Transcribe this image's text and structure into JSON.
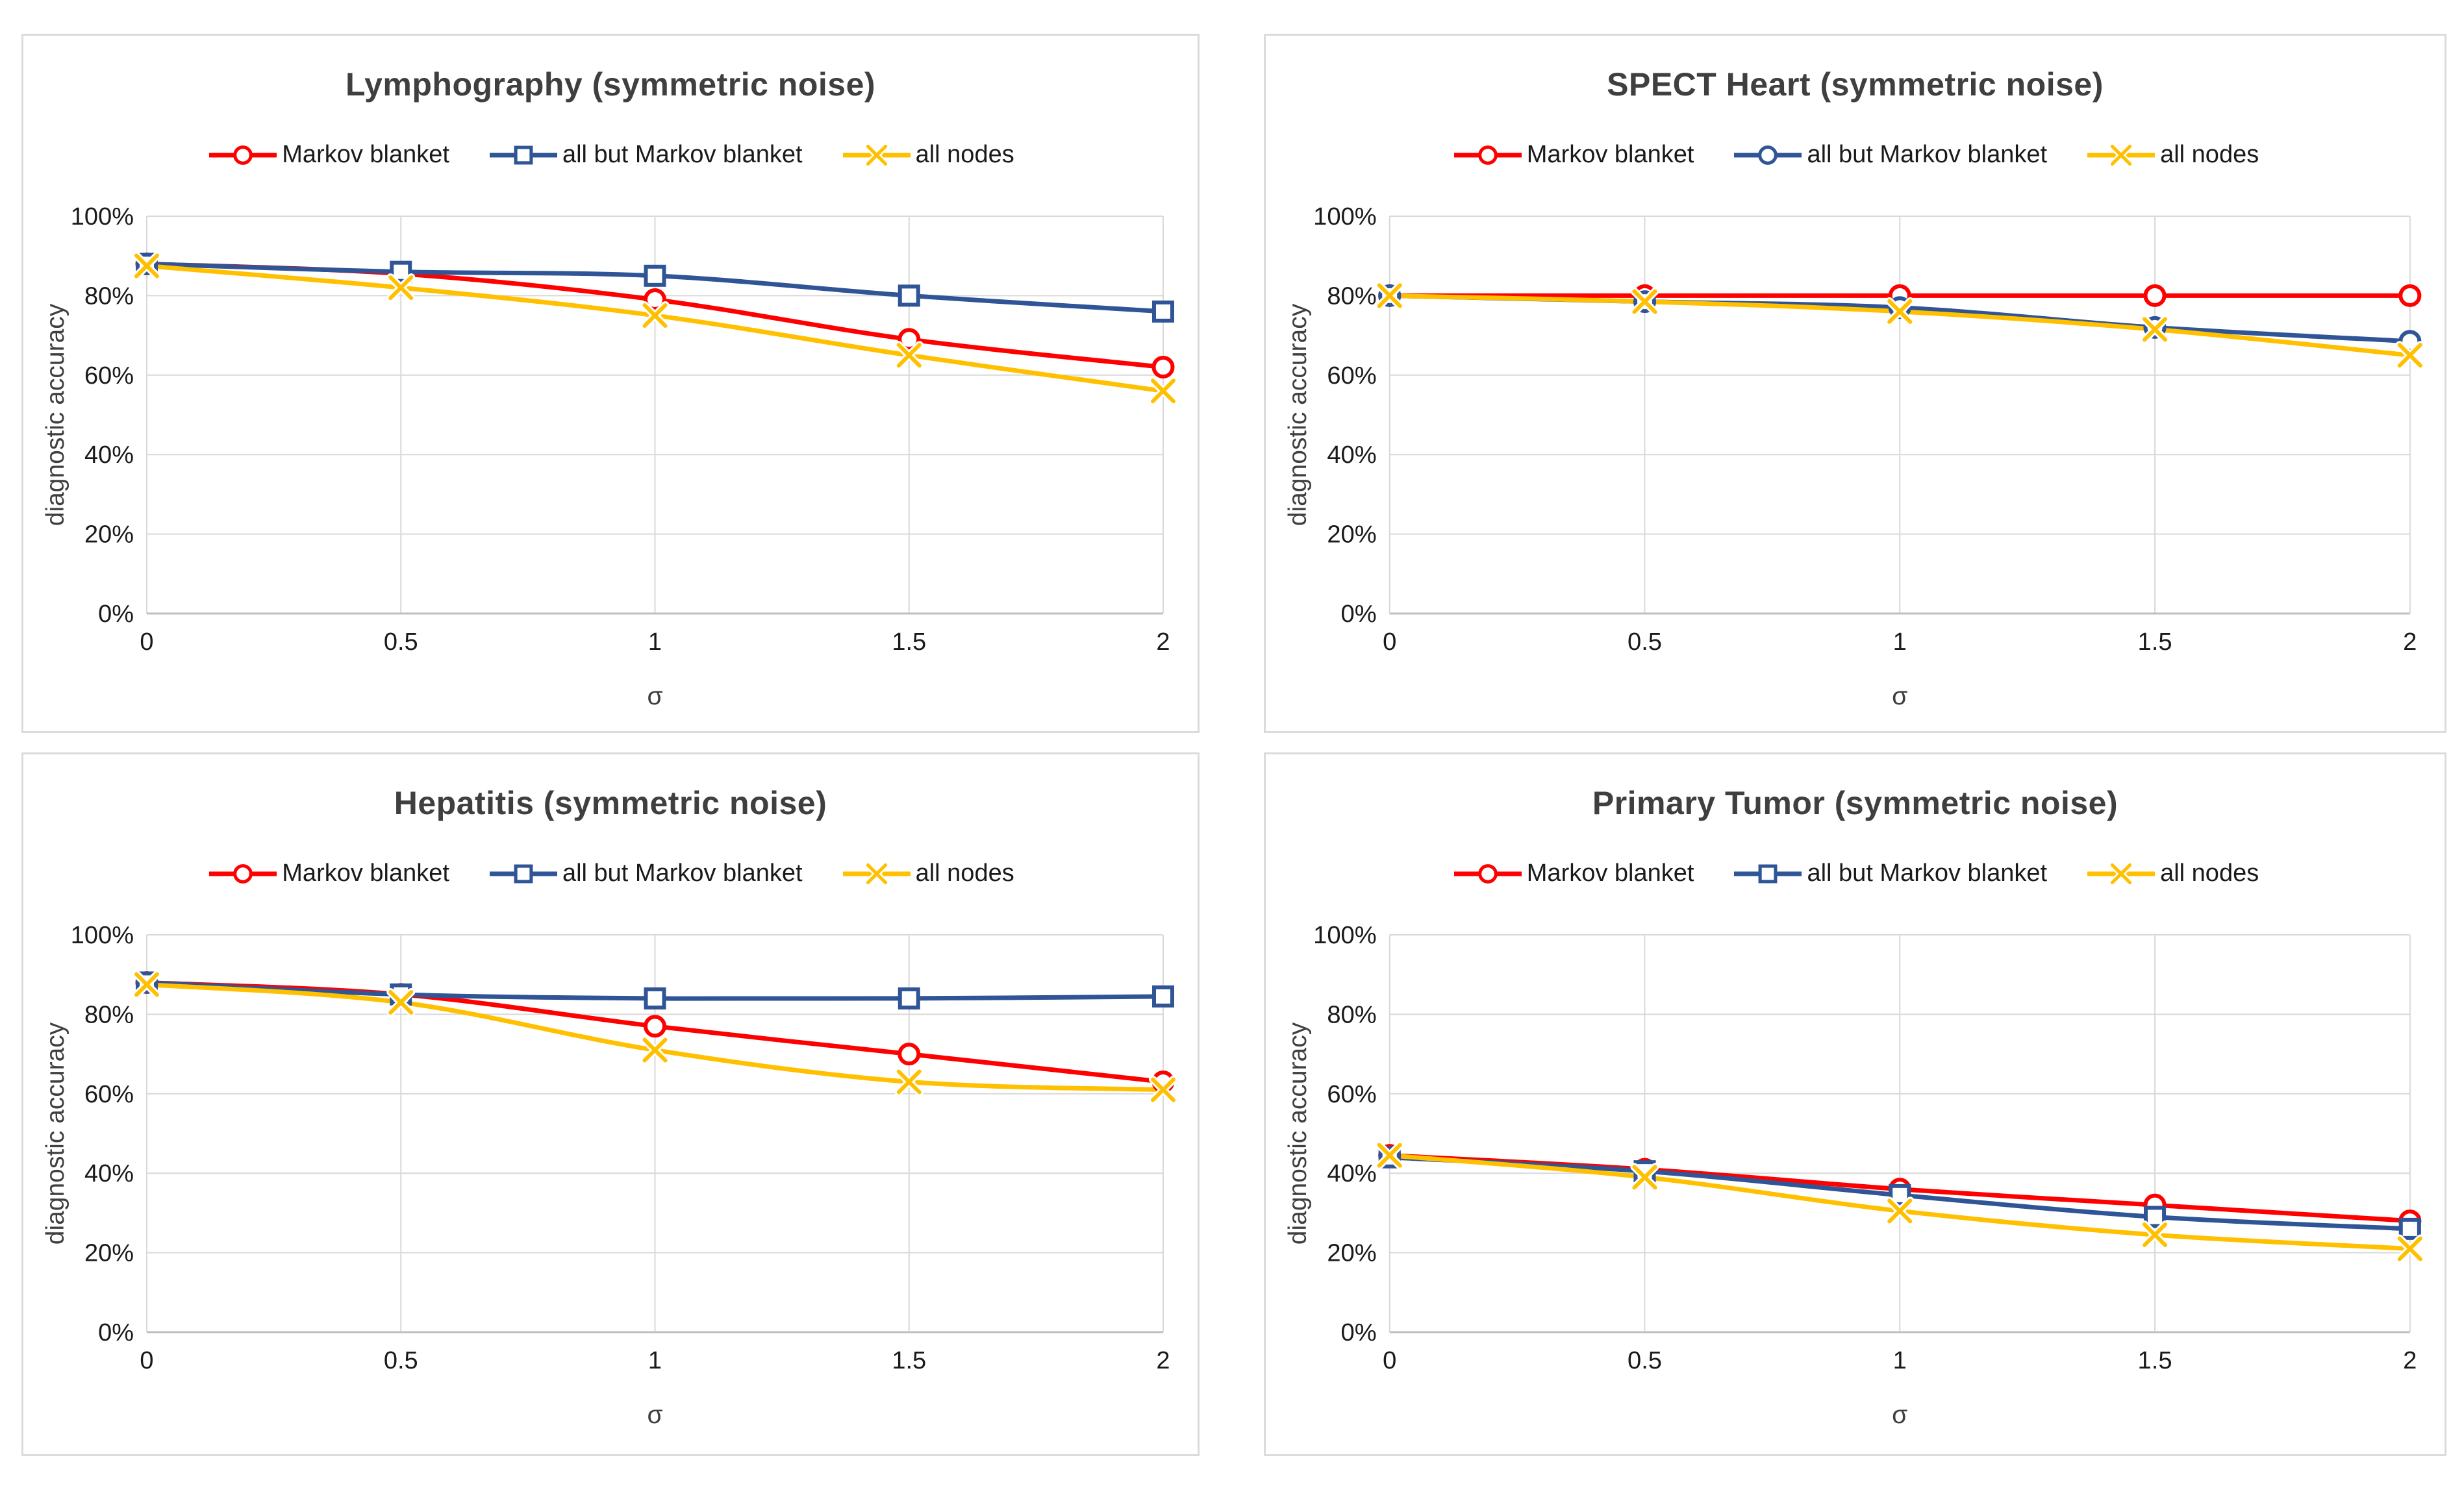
{
  "style": {
    "series_red": "#FF0000",
    "series_blue": "#2F5597",
    "series_gold": "#FFC000",
    "gridline": "#D9D9D9",
    "axis_line": "#BFBFBF",
    "panel_border": "#DBDBDB",
    "title_text": "#3F3F3F",
    "tick_text": "#1a1a1a"
  },
  "chart_data": [
    {
      "type": "line",
      "title": "Lymphography (symmetric noise)",
      "xlabel": "σ",
      "ylabel": "diagnostic accuracy",
      "x": [
        0,
        0.5,
        1,
        1.5,
        2
      ],
      "x_tick_labels": [
        "0",
        "0.5",
        "1",
        "1.5",
        "2"
      ],
      "y_tick_labels": [
        "0%",
        "20%",
        "40%",
        "60%",
        "80%",
        "100%"
      ],
      "ylim": [
        0,
        100
      ],
      "y_tick_step": 20,
      "grid": true,
      "legend_position": "top",
      "unit": "%",
      "series": [
        {
          "name": "Markov blanket",
          "color": "#FF0000",
          "marker": "circle",
          "values": [
            88,
            85.5,
            79,
            69,
            62
          ]
        },
        {
          "name": "all but Markov blanket",
          "color": "#2F5597",
          "marker": "square",
          "values": [
            88,
            86,
            85,
            80,
            76
          ]
        },
        {
          "name": "all nodes",
          "color": "#FFC000",
          "marker": "x",
          "values": [
            87.5,
            82,
            75,
            65,
            56
          ]
        }
      ]
    },
    {
      "type": "line",
      "title": "SPECT Heart (symmetric noise)",
      "xlabel": "σ",
      "ylabel": "diagnostic accuracy",
      "x": [
        0,
        0.5,
        1,
        1.5,
        2
      ],
      "x_tick_labels": [
        "0",
        "0.5",
        "1",
        "1.5",
        "2"
      ],
      "y_tick_labels": [
        "0%",
        "20%",
        "40%",
        "60%",
        "80%",
        "100%"
      ],
      "ylim": [
        0,
        100
      ],
      "y_tick_step": 20,
      "grid": true,
      "legend_position": "top",
      "unit": "%",
      "series": [
        {
          "name": "Markov blanket",
          "color": "#FF0000",
          "marker": "circle",
          "values": [
            80,
            80,
            80,
            80,
            80
          ]
        },
        {
          "name": "all but Markov blanket",
          "color": "#2F5597",
          "marker": "circle",
          "values": [
            80,
            78.5,
            77,
            72,
            68.5
          ]
        },
        {
          "name": "all nodes",
          "color": "#FFC000",
          "marker": "x",
          "values": [
            80,
            78.5,
            76,
            71.5,
            65
          ]
        }
      ]
    },
    {
      "type": "line",
      "title": "Hepatitis (symmetric noise)",
      "xlabel": "σ",
      "ylabel": "diagnostic accuracy",
      "x": [
        0,
        0.5,
        1,
        1.5,
        2
      ],
      "x_tick_labels": [
        "0",
        "0.5",
        "1",
        "1.5",
        "2"
      ],
      "y_tick_labels": [
        "0%",
        "20%",
        "40%",
        "60%",
        "80%",
        "100%"
      ],
      "ylim": [
        0,
        100
      ],
      "y_tick_step": 20,
      "grid": true,
      "legend_position": "top",
      "unit": "%",
      "series": [
        {
          "name": "Markov blanket",
          "color": "#FF0000",
          "marker": "circle",
          "values": [
            88,
            85,
            77,
            70,
            63
          ]
        },
        {
          "name": "all but Markov blanket",
          "color": "#2F5597",
          "marker": "square",
          "values": [
            88,
            85,
            84,
            84,
            84.5
          ]
        },
        {
          "name": "all nodes",
          "color": "#FFC000",
          "marker": "x",
          "values": [
            87.5,
            83,
            71,
            63,
            61
          ]
        }
      ]
    },
    {
      "type": "line",
      "title": "Primary Tumor (symmetric noise)",
      "xlabel": "σ",
      "ylabel": "diagnostic accuracy",
      "x": [
        0,
        0.5,
        1,
        1.5,
        2
      ],
      "x_tick_labels": [
        "0",
        "0.5",
        "1",
        "1.5",
        "2"
      ],
      "y_tick_labels": [
        "0%",
        "20%",
        "40%",
        "60%",
        "80%",
        "100%"
      ],
      "ylim": [
        0,
        100
      ],
      "y_tick_step": 20,
      "grid": true,
      "legend_position": "top",
      "unit": "%",
      "series": [
        {
          "name": "Markov blanket",
          "color": "#FF0000",
          "marker": "circle",
          "values": [
            44.5,
            41,
            36,
            32,
            28
          ]
        },
        {
          "name": "all but Markov blanket",
          "color": "#2F5597",
          "marker": "square",
          "values": [
            44,
            40.5,
            34.5,
            29,
            26
          ]
        },
        {
          "name": "all nodes",
          "color": "#FFC000",
          "marker": "x",
          "values": [
            44.5,
            39,
            30.5,
            24.5,
            21
          ]
        }
      ]
    }
  ]
}
